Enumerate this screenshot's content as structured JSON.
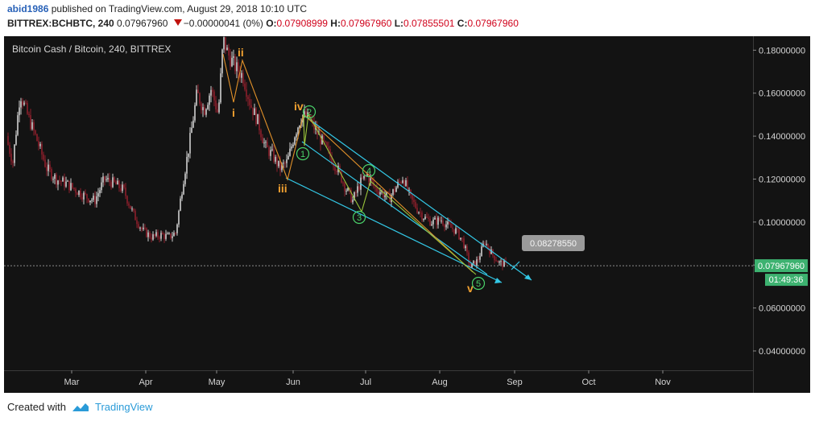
{
  "header": {
    "author": "abid1986",
    "publish_text": "published on TradingView.com, August 29, 2018 10:10 UTC",
    "symbol": "BITTREX:BCHBTC, 240",
    "last": "0.07967960",
    "change": "−0.00000041 (0%)",
    "o_label": "O:",
    "o_value": "0.07908999",
    "h_label": "H:",
    "h_value": "0.07967960",
    "l_label": "L:",
    "l_value": "0.07855501",
    "c_label": "C:",
    "c_value": "0.07967960"
  },
  "chart_data": {
    "type": "candlestick",
    "title": "Bitcoin Cash / Bitcoin, 240, BITTREX",
    "x_tick_labels": [
      "Mar",
      "Apr",
      "May",
      "Jun",
      "Jul",
      "Aug",
      "Sep",
      "Oct",
      "Nov"
    ],
    "y_tick_labels": [
      "0.18000000",
      "0.16000000",
      "0.14000000",
      "0.12000000",
      "0.10000000",
      "0.08000000",
      "0.06000000",
      "0.04000000"
    ],
    "ylim": [
      0.031,
      0.1865
    ],
    "grid": false,
    "series": [
      {
        "style": "candles",
        "x": [
          "2018-02-01",
          "2018-02-04",
          "2018-02-07",
          "2018-02-10",
          "2018-02-14",
          "2018-02-18",
          "2018-02-22",
          "2018-02-26",
          "2018-03-02",
          "2018-03-06",
          "2018-03-10",
          "2018-03-14",
          "2018-03-18",
          "2018-03-22",
          "2018-03-26",
          "2018-03-30",
          "2018-04-03",
          "2018-04-07",
          "2018-04-10",
          "2018-04-13",
          "2018-04-16",
          "2018-04-19",
          "2018-04-22",
          "2018-04-25",
          "2018-04-28",
          "2018-05-01",
          "2018-05-03",
          "2018-05-05",
          "2018-05-08",
          "2018-05-11",
          "2018-05-14",
          "2018-05-17",
          "2018-05-20",
          "2018-05-23",
          "2018-05-26",
          "2018-05-29",
          "2018-06-01",
          "2018-06-04",
          "2018-06-07",
          "2018-06-10",
          "2018-06-13",
          "2018-06-16",
          "2018-06-19",
          "2018-06-22",
          "2018-06-25",
          "2018-06-28",
          "2018-07-01",
          "2018-07-04",
          "2018-07-07",
          "2018-07-10",
          "2018-07-13",
          "2018-07-16",
          "2018-07-19",
          "2018-07-22",
          "2018-07-25",
          "2018-07-28",
          "2018-08-01",
          "2018-08-04",
          "2018-08-07",
          "2018-08-10",
          "2018-08-13",
          "2018-08-16",
          "2018-08-19",
          "2018-08-22",
          "2018-08-25",
          "2018-08-28"
        ],
        "y": [
          0.14,
          0.128,
          0.16,
          0.15,
          0.138,
          0.125,
          0.12,
          0.118,
          0.115,
          0.112,
          0.11,
          0.12,
          0.118,
          0.115,
          0.104,
          0.096,
          0.093,
          0.094,
          0.093,
          0.095,
          0.118,
          0.138,
          0.16,
          0.152,
          0.162,
          0.15,
          0.185,
          0.178,
          0.172,
          0.168,
          0.155,
          0.147,
          0.135,
          0.131,
          0.125,
          0.128,
          0.141,
          0.15,
          0.148,
          0.142,
          0.136,
          0.13,
          0.124,
          0.116,
          0.11,
          0.118,
          0.122,
          0.116,
          0.114,
          0.111,
          0.116,
          0.121,
          0.111,
          0.106,
          0.102,
          0.1,
          0.101,
          0.098,
          0.096,
          0.091,
          0.079,
          0.082,
          0.091,
          0.085,
          0.081,
          0.08
        ]
      }
    ],
    "annotations": [
      {
        "text": "ii",
        "color": "#f0a030"
      },
      {
        "text": "i",
        "color": "#f0a030"
      },
      {
        "text": "iii",
        "color": "#f0a030"
      },
      {
        "text": "iv",
        "color": "#f0a030"
      },
      {
        "text": "v",
        "color": "#f0a030"
      },
      {
        "text": "1",
        "color": "#4ad16a"
      },
      {
        "text": "2",
        "color": "#4ad16a"
      },
      {
        "text": "3",
        "color": "#4ad16a"
      },
      {
        "text": "4",
        "color": "#4ad16a"
      },
      {
        "text": "5",
        "color": "#4ad16a"
      }
    ],
    "target_label": "0.08278550",
    "last_price_label": "0.07967960",
    "countdown_label": "01:49:36"
  },
  "colors": {
    "background": "#131313",
    "up_candle": "#cfcfcf",
    "down_candle": "#8c1f2b",
    "wave_lines": "#e0902a",
    "channel_lines": "#33c8e6",
    "price_label_bg": "#3db270",
    "target_bg": "#9a9a9a"
  },
  "footer": {
    "created_with": "Created with",
    "brand": "TradingView"
  }
}
